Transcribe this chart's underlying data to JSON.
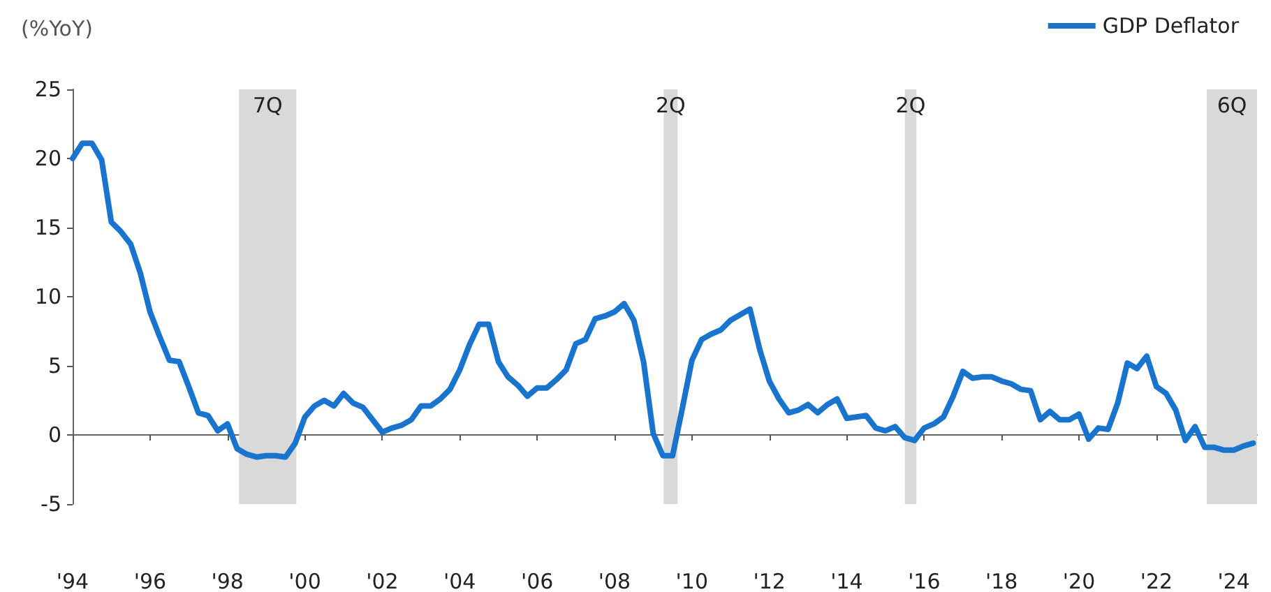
{
  "chart_data": {
    "type": "line",
    "ylabel": "(%YoY)",
    "legend": "top right",
    "marker": "none",
    "line_style": "solid",
    "x": [
      1994,
      1994.25,
      1994.5,
      1994.75,
      1995,
      1995.25,
      1995.5,
      1995.75,
      1996,
      1996.25,
      1996.5,
      1996.75,
      1997,
      1997.25,
      1997.5,
      1997.75,
      1998,
      1998.25,
      1998.5,
      1998.75,
      1999,
      1999.25,
      1999.5,
      1999.75,
      2000,
      2000.25,
      2000.5,
      2000.75,
      2001,
      2001.25,
      2001.5,
      2001.75,
      2002,
      2002.25,
      2002.5,
      2002.75,
      2003,
      2003.25,
      2003.5,
      2003.75,
      2004,
      2004.25,
      2004.5,
      2004.75,
      2005,
      2005.25,
      2005.5,
      2005.75,
      2006,
      2006.25,
      2006.5,
      2006.75,
      2007,
      2007.25,
      2007.5,
      2007.75,
      2008,
      2008.25,
      2008.5,
      2008.75,
      2009,
      2009.25,
      2009.5,
      2009.75,
      2010,
      2010.25,
      2010.5,
      2010.75,
      2011,
      2011.25,
      2011.5,
      2011.75,
      2012,
      2012.25,
      2012.5,
      2012.75,
      2013,
      2013.25,
      2013.5,
      2013.75,
      2014,
      2014.25,
      2014.5,
      2014.75,
      2015,
      2015.25,
      2015.5,
      2015.75,
      2016,
      2016.25,
      2016.5,
      2016.75,
      2017,
      2017.25,
      2017.5,
      2017.75,
      2018,
      2018.25,
      2018.5,
      2018.75,
      2019,
      2019.25,
      2019.5,
      2019.75,
      2020,
      2020.25,
      2020.5,
      2020.75,
      2021,
      2021.25,
      2021.5,
      2021.75,
      2022,
      2022.25,
      2022.5,
      2022.75,
      2023,
      2023.25,
      2023.5,
      2023.75,
      2024,
      2024.25,
      2024.5
    ],
    "series": [
      {
        "name": "GDP Deflator",
        "color": "#1874cd",
        "values": [
          20.0,
          21.1,
          21.1,
          19.9,
          15.4,
          14.7,
          13.8,
          11.7,
          8.9,
          7.1,
          5.4,
          5.3,
          3.5,
          1.6,
          1.4,
          0.3,
          0.8,
          -1.0,
          -1.4,
          -1.6,
          -1.5,
          -1.5,
          -1.6,
          -0.6,
          1.3,
          2.1,
          2.5,
          2.1,
          3.0,
          2.3,
          2.0,
          1.1,
          0.2,
          0.5,
          0.7,
          1.1,
          2.1,
          2.1,
          2.6,
          3.3,
          4.7,
          6.5,
          8.0,
          8.0,
          5.3,
          4.2,
          3.6,
          2.8,
          3.4,
          3.4,
          4.0,
          4.7,
          6.6,
          6.9,
          8.4,
          8.6,
          8.9,
          9.5,
          8.3,
          5.3,
          0.1,
          -1.5,
          -1.5,
          1.9,
          5.4,
          6.9,
          7.3,
          7.6,
          8.3,
          8.7,
          9.1,
          6.2,
          3.9,
          2.6,
          1.6,
          1.8,
          2.2,
          1.6,
          2.2,
          2.6,
          1.2,
          1.3,
          1.4,
          0.5,
          0.3,
          0.6,
          -0.2,
          -0.4,
          0.5,
          0.8,
          1.3,
          2.8,
          4.6,
          4.1,
          4.2,
          4.2,
          3.9,
          3.7,
          3.3,
          3.2,
          1.1,
          1.7,
          1.1,
          1.1,
          1.5,
          -0.3,
          0.5,
          0.4,
          2.3,
          5.2,
          4.8,
          5.7,
          3.5,
          3.0,
          1.8,
          -0.4,
          0.6,
          -0.9,
          -0.9,
          -1.1,
          -1.1,
          -0.8,
          -0.6
        ]
      }
    ],
    "xlim": [
      1994,
      2024.6
    ],
    "xticks": [
      {
        "value": 1994,
        "label": "'94"
      },
      {
        "value": 1996,
        "label": "'96"
      },
      {
        "value": 1998,
        "label": "'98"
      },
      {
        "value": 2000,
        "label": "'00"
      },
      {
        "value": 2002,
        "label": "'02"
      },
      {
        "value": 2004,
        "label": "'04"
      },
      {
        "value": 2006,
        "label": "'06"
      },
      {
        "value": 2008,
        "label": "'08"
      },
      {
        "value": 2010,
        "label": "'10"
      },
      {
        "value": 2012,
        "label": "'12"
      },
      {
        "value": 2014,
        "label": "'14"
      },
      {
        "value": 2016,
        "label": "'16"
      },
      {
        "value": 2018,
        "label": "'18"
      },
      {
        "value": 2020,
        "label": "'20"
      },
      {
        "value": 2022,
        "label": "'22"
      },
      {
        "value": 2024,
        "label": "'24"
      }
    ],
    "ylim": [
      -5,
      25
    ],
    "yticks": [
      -5,
      0,
      5,
      10,
      15,
      20,
      25
    ],
    "bands": [
      {
        "axis": "x",
        "from": 1998.3,
        "to": 1999.78,
        "label": "7Q",
        "color": "#d9d9d9"
      },
      {
        "axis": "x",
        "from": 2009.27,
        "to": 2009.63,
        "label": "2Q",
        "color": "#d9d9d9"
      },
      {
        "axis": "x",
        "from": 2015.5,
        "to": 2015.8,
        "label": "2Q",
        "color": "#d9d9d9"
      },
      {
        "axis": "x",
        "from": 2023.3,
        "to": 2024.6,
        "label": "6Q",
        "color": "#d9d9d9"
      }
    ]
  }
}
